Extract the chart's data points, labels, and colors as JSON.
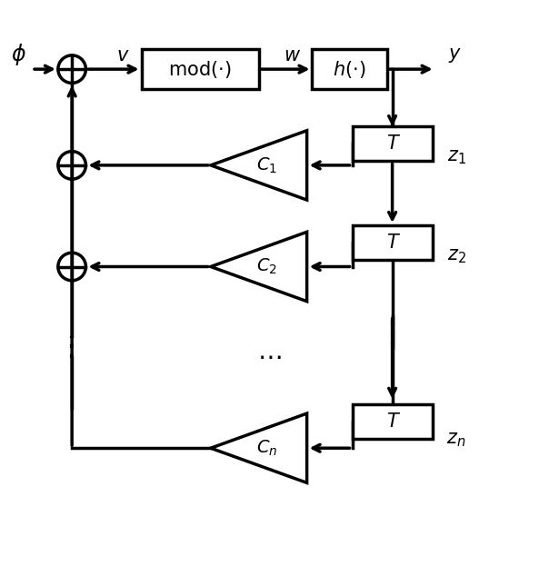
{
  "figsize": [
    5.93,
    6.34
  ],
  "dpi": 100,
  "bg_color": "white",
  "lw": 2.5,
  "phi_label": "$\\phi$",
  "v_label": "$v$",
  "w_label": "$w$",
  "y_label": "$y$",
  "z1_label": "$z_1$",
  "z2_label": "$z_2$",
  "zn_label": "$z_n$",
  "mod_label": "$\\mathrm{mod}(\\cdot)$",
  "h_label": "$h(\\cdot)$",
  "T_label": "T",
  "C1_label": "$C_1$",
  "C2_label": "$C_2$",
  "Cn_label": "$C_n$"
}
